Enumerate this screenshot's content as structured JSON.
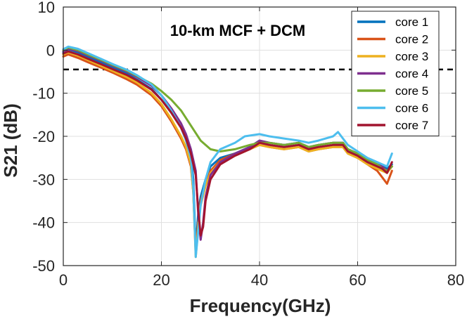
{
  "chart_data": {
    "type": "line",
    "title": "10-km MCF + DCM",
    "xlabel": "Frequency(GHz)",
    "ylabel": "S21 (dB)",
    "xlim": [
      0,
      80
    ],
    "ylim": [
      -50,
      10
    ],
    "xticks": [
      "0",
      "20",
      "40",
      "60",
      "80"
    ],
    "yticks": [
      "10",
      "0",
      "-10",
      "-20",
      "-30",
      "-40",
      "-50"
    ],
    "grid": true,
    "legend_position": "top-right",
    "reference_line": {
      "y": -4.5,
      "style": "dashed",
      "color": "#000000"
    },
    "series": [
      {
        "name": "core 1",
        "color": "#0072BD",
        "x": [
          0,
          1,
          3,
          5,
          8,
          10,
          13,
          15,
          18,
          20,
          22,
          24,
          25,
          26,
          26.5,
          27,
          27.5,
          28,
          29,
          30,
          32,
          35,
          38,
          40,
          42,
          45,
          48,
          50,
          52,
          55,
          57,
          58,
          60,
          62,
          64,
          65,
          66,
          67
        ],
        "y": [
          -0.5,
          0.2,
          -0.5,
          -1.5,
          -3,
          -4,
          -5.5,
          -6.8,
          -9,
          -11.5,
          -14.5,
          -18,
          -20.5,
          -24,
          -30,
          -46,
          -38,
          -34,
          -30,
          -27,
          -25,
          -24,
          -22.5,
          -21,
          -21.5,
          -22,
          -21.5,
          -22.5,
          -22,
          -21.5,
          -21.5,
          -23,
          -24,
          -25.5,
          -26.5,
          -27,
          -27.5,
          -26.5
        ]
      },
      {
        "name": "core 2",
        "color": "#D95319",
        "x": [
          0,
          1,
          3,
          5,
          8,
          10,
          13,
          15,
          18,
          20,
          22,
          24,
          25,
          26,
          26.5,
          27,
          27.5,
          28,
          29,
          30,
          32,
          35,
          38,
          40,
          42,
          45,
          48,
          50,
          52,
          55,
          57,
          58,
          60,
          62,
          64,
          65,
          66,
          67
        ],
        "y": [
          -1.5,
          -1,
          -1.8,
          -2.8,
          -4.2,
          -5.2,
          -6.8,
          -8,
          -10.5,
          -13,
          -16.5,
          -20.5,
          -23,
          -27,
          -33,
          -47,
          -40,
          -35,
          -31,
          -28,
          -25.5,
          -24,
          -23,
          -22,
          -22.5,
          -23,
          -22.5,
          -23.5,
          -23,
          -22.5,
          -22.5,
          -24,
          -25,
          -26.5,
          -28,
          -29.5,
          -31,
          -28
        ]
      },
      {
        "name": "core 3",
        "color": "#EDB120",
        "x": [
          0,
          1,
          3,
          5,
          8,
          10,
          13,
          15,
          18,
          20,
          22,
          24,
          25,
          26,
          26.5,
          27,
          27.5,
          28,
          29,
          30,
          32,
          35,
          38,
          40,
          42,
          45,
          48,
          50,
          52,
          55,
          57,
          58,
          60,
          62,
          64,
          65,
          66,
          67
        ],
        "y": [
          -1,
          -0.5,
          -1.3,
          -2.3,
          -3.8,
          -4.8,
          -6.3,
          -7.5,
          -10,
          -12.5,
          -16,
          -20,
          -22.5,
          -26.5,
          -33,
          -48,
          -41,
          -36,
          -31.5,
          -28.5,
          -26,
          -24.5,
          -23,
          -22,
          -22.5,
          -23,
          -22.5,
          -23.5,
          -23,
          -22.5,
          -22.5,
          -24,
          -25,
          -26.5,
          -27.5,
          -28,
          -28.5,
          -27
        ]
      },
      {
        "name": "core 4",
        "color": "#7E2F8E",
        "x": [
          0,
          1,
          3,
          5,
          8,
          10,
          13,
          15,
          18,
          20,
          22,
          24,
          25,
          26,
          27,
          27.5,
          28,
          28.5,
          29,
          30,
          32,
          35,
          38,
          40,
          42,
          45,
          48,
          50,
          52,
          55,
          57,
          58,
          60,
          62,
          64,
          65,
          66,
          67
        ],
        "y": [
          -0.3,
          0.3,
          -0.2,
          -1.2,
          -2.6,
          -3.6,
          -5,
          -6.2,
          -8.3,
          -10.5,
          -13.5,
          -17,
          -19.5,
          -23,
          -28,
          -38,
          -44,
          -40,
          -34,
          -29,
          -26,
          -24,
          -22.5,
          -21,
          -21.5,
          -22,
          -21.5,
          -22.5,
          -22,
          -21.5,
          -21.5,
          -23,
          -24,
          -25.5,
          -26.5,
          -27,
          -28,
          -27
        ]
      },
      {
        "name": "core 5",
        "color": "#77AC30",
        "x": [
          0,
          1,
          3,
          5,
          8,
          10,
          13,
          15,
          18,
          20,
          22,
          24,
          26,
          28,
          30,
          32,
          35,
          38,
          40,
          42,
          45,
          48,
          50,
          52,
          55,
          57,
          58,
          60,
          62,
          64,
          65,
          66,
          67
        ],
        "y": [
          0,
          0.6,
          0,
          -1,
          -2.4,
          -3.4,
          -4.8,
          -6,
          -7.8,
          -9.5,
          -11.5,
          -14,
          -17.5,
          -21,
          -23,
          -23.5,
          -23,
          -22,
          -21.5,
          -21.5,
          -22,
          -21.5,
          -22.5,
          -22,
          -21.5,
          -21.5,
          -23,
          -24,
          -25.5,
          -26.5,
          -27.5,
          -28,
          -27
        ]
      },
      {
        "name": "core 6",
        "color": "#4DBEEE",
        "x": [
          0,
          1,
          3,
          5,
          8,
          10,
          13,
          15,
          18,
          20,
          22,
          24,
          25,
          26,
          26.5,
          27,
          27.5,
          28,
          29,
          30,
          32,
          35,
          37,
          40,
          42,
          45,
          48,
          50,
          52,
          55,
          56,
          58,
          60,
          62,
          64,
          65,
          66,
          67
        ],
        "y": [
          0.2,
          0.8,
          0.3,
          -0.7,
          -2.2,
          -3.2,
          -4.6,
          -5.8,
          -8,
          -10.5,
          -14,
          -18,
          -21,
          -25,
          -32,
          -48,
          -42,
          -36,
          -30,
          -26,
          -23,
          -21.5,
          -20,
          -19.5,
          -20,
          -20.5,
          -21,
          -21.5,
          -21,
          -20,
          -19,
          -22,
          -23.5,
          -25,
          -26,
          -26.5,
          -27,
          -24
        ]
      },
      {
        "name": "core 7",
        "color": "#A2142F",
        "x": [
          0,
          1,
          3,
          5,
          8,
          10,
          13,
          15,
          18,
          20,
          22,
          24,
          25,
          26,
          27,
          27.5,
          28,
          28.5,
          29,
          30,
          32,
          35,
          38,
          40,
          42,
          45,
          48,
          50,
          52,
          55,
          57,
          58,
          60,
          62,
          64,
          65,
          66,
          67
        ],
        "y": [
          -0.8,
          -0.3,
          -1,
          -2,
          -3.4,
          -4.4,
          -5.8,
          -7,
          -9.2,
          -11.5,
          -14.5,
          -18,
          -20.5,
          -24,
          -29,
          -37,
          -43,
          -41,
          -35,
          -30,
          -26.5,
          -24.5,
          -23,
          -21.5,
          -22,
          -22.5,
          -22,
          -23,
          -22.5,
          -22,
          -22,
          -23.5,
          -24.5,
          -26,
          -27,
          -27.5,
          -28.5,
          -26
        ]
      }
    ]
  }
}
